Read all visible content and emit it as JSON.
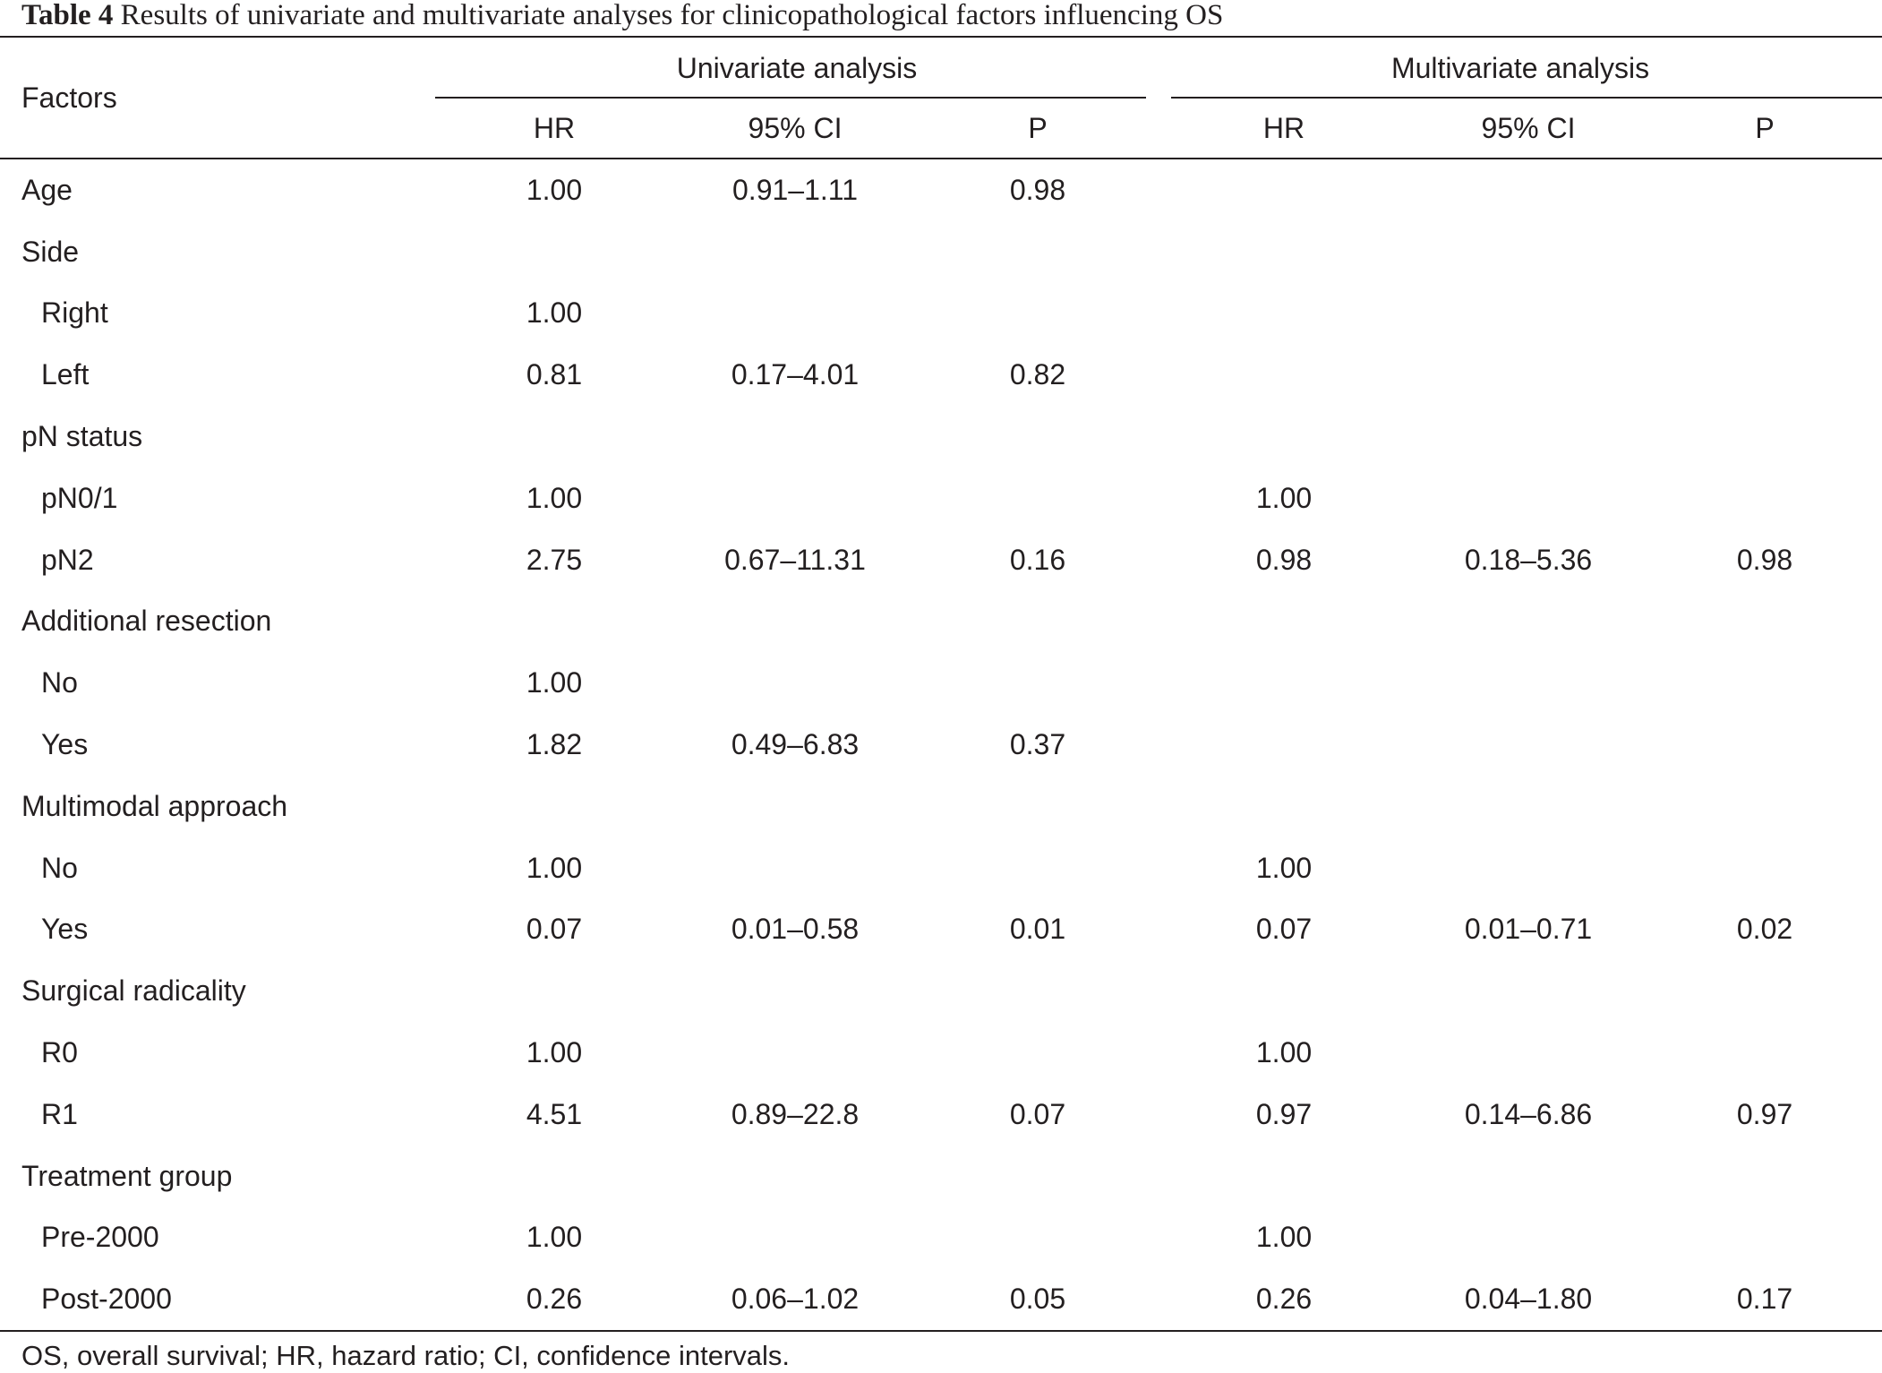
{
  "caption": {
    "label": "Table 4",
    "text": "Results of univariate and multivariate analyses for clinicopathological factors influencing OS"
  },
  "header": {
    "factors": "Factors",
    "univariate": "Univariate analysis",
    "multivariate": "Multivariate analysis",
    "columns": [
      "HR",
      "95% CI",
      "P",
      "HR",
      "95% CI",
      "P"
    ]
  },
  "rows": [
    {
      "factor": "Age",
      "indent": false,
      "cells": [
        "1.00",
        "0.91–1.11",
        "0.98",
        "",
        "",
        ""
      ]
    },
    {
      "factor": "Side",
      "indent": false,
      "cells": [
        "",
        "",
        "",
        "",
        "",
        ""
      ]
    },
    {
      "factor": "Right",
      "indent": true,
      "cells": [
        "1.00",
        "",
        "",
        "",
        "",
        ""
      ]
    },
    {
      "factor": "Left",
      "indent": true,
      "cells": [
        "0.81",
        "0.17–4.01",
        "0.82",
        "",
        "",
        ""
      ]
    },
    {
      "factor": "pN status",
      "indent": false,
      "cells": [
        "",
        "",
        "",
        "",
        "",
        ""
      ]
    },
    {
      "factor": "pN0/1",
      "indent": true,
      "cells": [
        "1.00",
        "",
        "",
        "1.00",
        "",
        ""
      ]
    },
    {
      "factor": "pN2",
      "indent": true,
      "cells": [
        "2.75",
        "0.67–11.31",
        "0.16",
        "0.98",
        "0.18–5.36",
        "0.98"
      ]
    },
    {
      "factor": "Additional resection",
      "indent": false,
      "cells": [
        "",
        "",
        "",
        "",
        "",
        ""
      ]
    },
    {
      "factor": "No",
      "indent": true,
      "cells": [
        "1.00",
        "",
        "",
        "",
        "",
        ""
      ]
    },
    {
      "factor": "Yes",
      "indent": true,
      "cells": [
        "1.82",
        "0.49–6.83",
        "0.37",
        "",
        "",
        ""
      ]
    },
    {
      "factor": "Multimodal approach",
      "indent": false,
      "cells": [
        "",
        "",
        "",
        "",
        "",
        ""
      ]
    },
    {
      "factor": "No",
      "indent": true,
      "cells": [
        "1.00",
        "",
        "",
        "1.00",
        "",
        ""
      ]
    },
    {
      "factor": "Yes",
      "indent": true,
      "cells": [
        "0.07",
        "0.01–0.58",
        "0.01",
        "0.07",
        "0.01–0.71",
        "0.02"
      ]
    },
    {
      "factor": "Surgical radicality",
      "indent": false,
      "cells": [
        "",
        "",
        "",
        "",
        "",
        ""
      ]
    },
    {
      "factor": "R0",
      "indent": true,
      "cells": [
        "1.00",
        "",
        "",
        "1.00",
        "",
        ""
      ]
    },
    {
      "factor": "R1",
      "indent": true,
      "cells": [
        "4.51",
        "0.89–22.8",
        "0.07",
        "0.97",
        "0.14–6.86",
        "0.97"
      ]
    },
    {
      "factor": "Treatment group",
      "indent": false,
      "cells": [
        "",
        "",
        "",
        "",
        "",
        ""
      ]
    },
    {
      "factor": "Pre-2000",
      "indent": true,
      "cells": [
        "1.00",
        "",
        "",
        "1.00",
        "",
        ""
      ]
    },
    {
      "factor": "Post-2000",
      "indent": true,
      "cells": [
        "0.26",
        "0.06–1.02",
        "0.05",
        "0.26",
        "0.04–1.80",
        "0.17"
      ]
    }
  ],
  "footnote": "OS, overall survival; HR, hazard ratio; CI, confidence intervals."
}
